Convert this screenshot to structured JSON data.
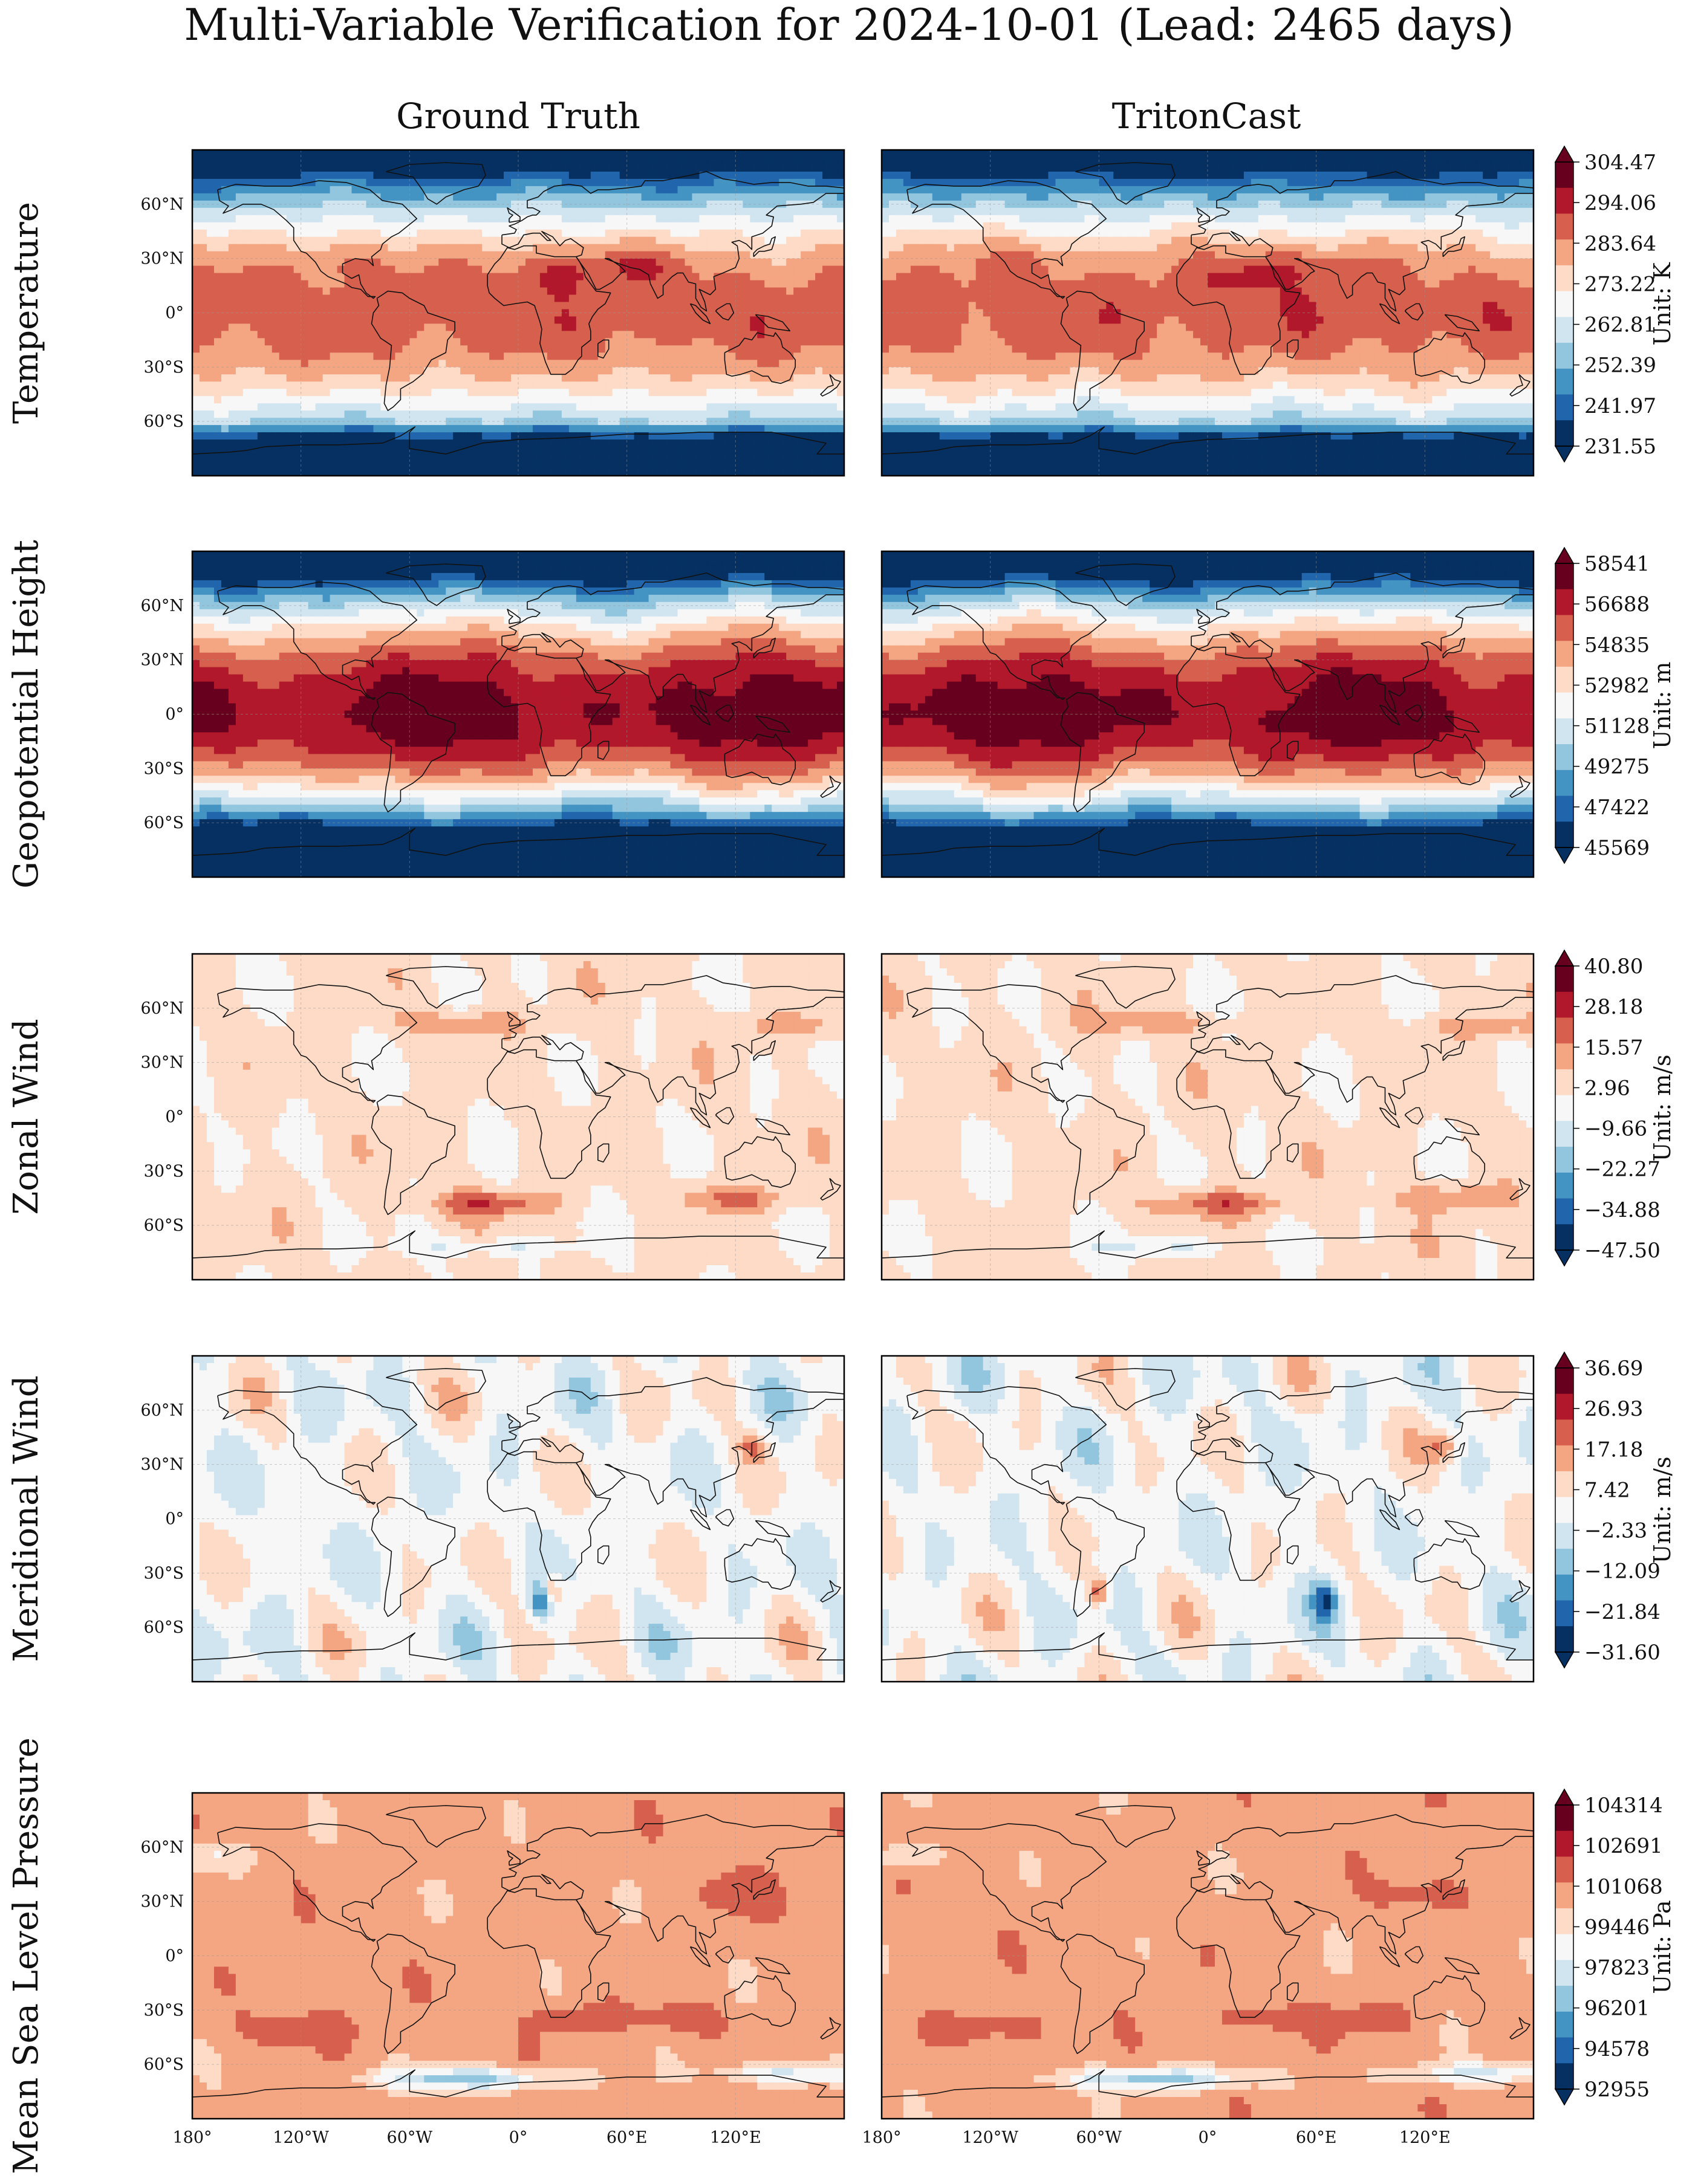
{
  "figure": {
    "title": "Multi-Variable Verification for 2024-10-01 (Lead: 2465 days)",
    "columns": [
      "Ground Truth",
      "TritonCast"
    ]
  },
  "chart_data": {
    "type": "heatmap",
    "projection": "PlateCarree",
    "xlim": [
      -180,
      180
    ],
    "ylim": [
      -90,
      90
    ],
    "lat_ticks": [
      "60°N",
      "30°N",
      "0°",
      "30°S",
      "60°S"
    ],
    "lat_tick_values": [
      60,
      30,
      0,
      -30,
      -60
    ],
    "lon_ticks": [
      "180°",
      "120°W",
      "60°W",
      "0°",
      "60°E",
      "120°E"
    ],
    "lon_tick_values": [
      -180,
      -120,
      -60,
      0,
      60,
      120
    ],
    "colormap": "RdBu_r",
    "panels": [
      {
        "variable": "Temperature",
        "unit_label": "Unit: K",
        "kind": "temperature",
        "levels": [
          "304.47",
          "294.06",
          "283.64",
          "273.22",
          "262.81",
          "252.39",
          "241.97",
          "231.55"
        ],
        "range": [
          231.55,
          304.47
        ]
      },
      {
        "variable": "Geopotential Height",
        "unit_label": "Unit: m",
        "kind": "geopotential",
        "levels": [
          "58541",
          "56688",
          "54835",
          "52982",
          "51128",
          "49275",
          "47422",
          "45569"
        ],
        "range": [
          45569,
          58541
        ]
      },
      {
        "variable": "Zonal Wind",
        "unit_label": "Unit: m/s",
        "kind": "uwind",
        "levels": [
          "40.80",
          "28.18",
          "15.57",
          "2.96",
          "−9.66",
          "−22.27",
          "−34.88",
          "−47.50"
        ],
        "range": [
          -47.5,
          40.8
        ]
      },
      {
        "variable": "Meridional Wind",
        "unit_label": "Unit: m/s",
        "kind": "vwind",
        "levels": [
          "36.69",
          "26.93",
          "17.18",
          "7.42",
          "−2.33",
          "−12.09",
          "−21.84",
          "−31.60"
        ],
        "range": [
          -31.6,
          36.69
        ]
      },
      {
        "variable": "Mean Sea Level Pressure",
        "unit_label": "Unit: Pa",
        "kind": "mslp",
        "levels": [
          "104314",
          "102691",
          "101068",
          "99446",
          "97823",
          "96201",
          "94578",
          "92955"
        ],
        "range": [
          92955,
          104314
        ]
      }
    ]
  },
  "colors": {
    "ramp": [
      "#053061",
      "#2166ac",
      "#4393c3",
      "#92c5de",
      "#d1e5f0",
      "#f7f7f7",
      "#fddbc7",
      "#f4a582",
      "#d6604d",
      "#b2182b",
      "#67001f"
    ]
  }
}
